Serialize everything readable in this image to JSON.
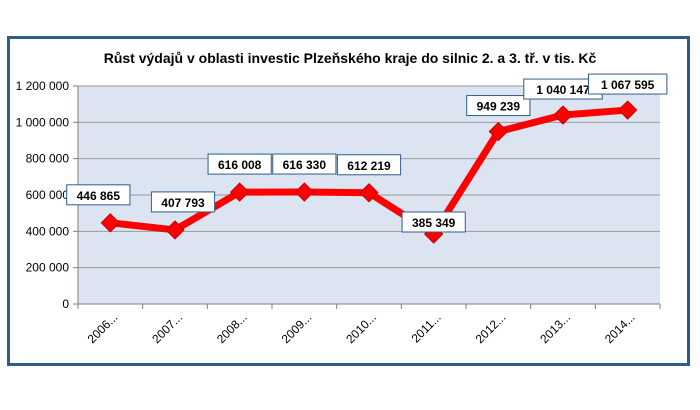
{
  "chart_data": {
    "type": "line",
    "title": "Růst  výdajů v oblasti investic Plzeňského kraje do silnic 2. a 3. tř. v tis. Kč",
    "categories": [
      "2006...",
      "2007...",
      "2008...",
      "2009...",
      "2010...",
      "2011...",
      "2012...",
      "2013...",
      "2014..."
    ],
    "series": [
      {
        "values": [
          446865,
          407793,
          616008,
          616330,
          612219,
          385349,
          949239,
          1040147,
          1067595
        ]
      }
    ],
    "data_labels": [
      "446 865",
      "407 793",
      "616 008",
      "616 330",
      "612 219",
      "385 349",
      "949 239",
      "1 040 147",
      "1 067 595"
    ],
    "y_tick_labels": [
      "0",
      "200 000",
      "400 000",
      "600 000",
      "800 000",
      "1 000 000",
      "1 200 000"
    ],
    "ylim": [
      0,
      1200000
    ],
    "grid": true,
    "colors": {
      "line": "#ff0000",
      "marker": "#ff0000",
      "plot_bg": "#dbe4f0",
      "frame": "#2e5d8a"
    }
  }
}
